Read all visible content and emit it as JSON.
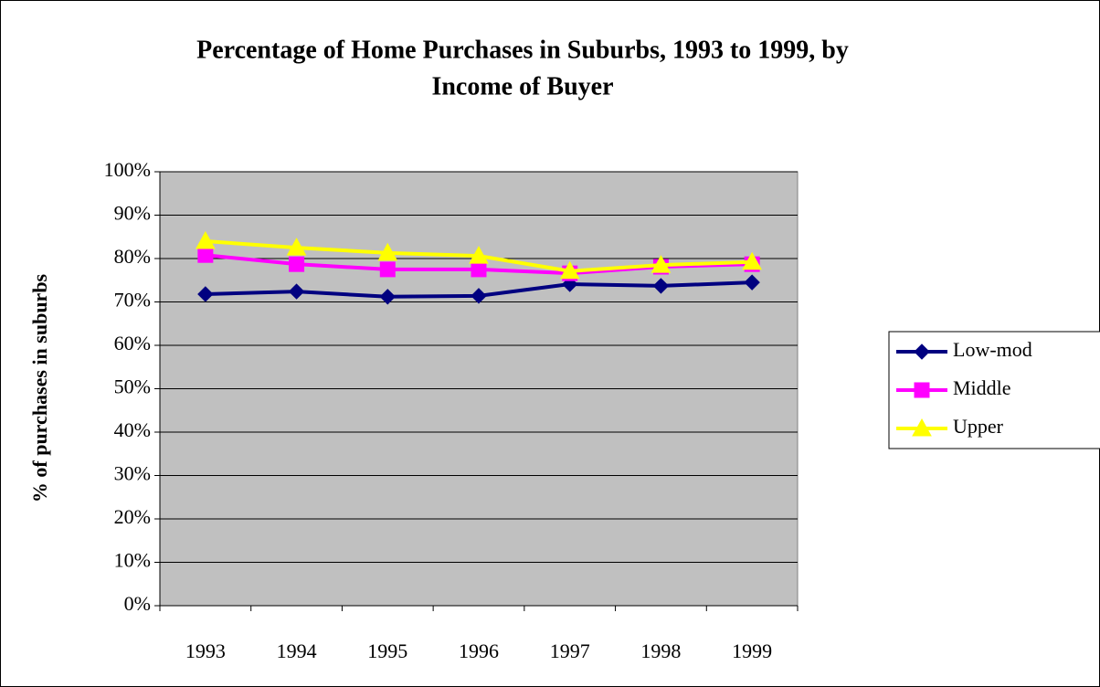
{
  "chart_data": {
    "type": "line",
    "title": "Percentage of Home Purchases in Suburbs, 1993 to 1999, by",
    "subtitle": "Income of Buyer",
    "y_label": "% of purchases in suburbs",
    "categories": [
      "1993",
      "1994",
      "1995",
      "1996",
      "1997",
      "1998",
      "1999"
    ],
    "series": [
      {
        "name": "Low-mod",
        "color": "#000080",
        "marker": "diamond",
        "values": [
          71.8,
          72.4,
          71.2,
          71.4,
          74.1,
          73.7,
          74.5
        ]
      },
      {
        "name": "Middle",
        "color": "#ff00ff",
        "marker": "square",
        "values": [
          80.8,
          78.7,
          77.5,
          77.5,
          76.6,
          78.1,
          78.7
        ]
      },
      {
        "name": "Upper",
        "color": "#ffff00",
        "marker": "triangle",
        "values": [
          84.0,
          82.5,
          81.3,
          80.6,
          77.1,
          78.5,
          79.2
        ]
      }
    ],
    "ylim": [
      0,
      100
    ],
    "yticks": [
      {
        "value": 0,
        "label": "0%"
      },
      {
        "value": 10,
        "label": "10%"
      },
      {
        "value": 20,
        "label": "20%"
      },
      {
        "value": 30,
        "label": "30%"
      },
      {
        "value": 40,
        "label": "40%"
      },
      {
        "value": 50,
        "label": "50%"
      },
      {
        "value": 60,
        "label": "60%"
      },
      {
        "value": 70,
        "label": "70%"
      },
      {
        "value": 80,
        "label": "80%"
      },
      {
        "value": 90,
        "label": "90%"
      },
      {
        "value": 100,
        "label": "100%"
      }
    ],
    "grid": true,
    "legend": "right"
  }
}
